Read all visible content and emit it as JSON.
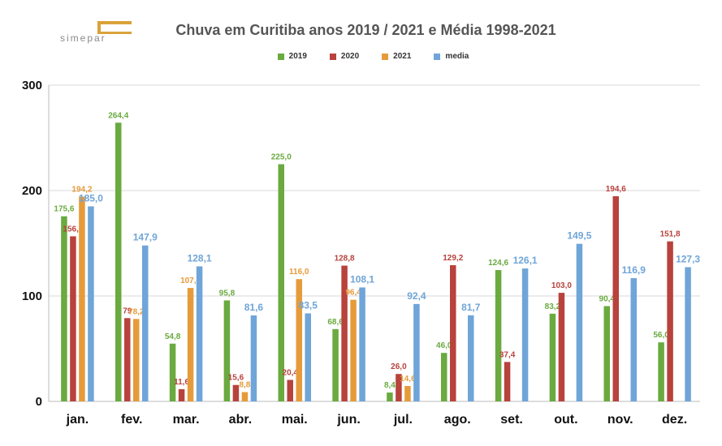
{
  "header": {
    "title": "Chuva em Curitiba anos 2019 / 2021 e Média 1998-2021",
    "logo_text": "simepar"
  },
  "colors": {
    "2019": "#6aaa3f",
    "2020": "#b8423c",
    "2021": "#e69b3a",
    "media": "#6fa5d8"
  },
  "chart_data": {
    "type": "bar",
    "title": "Chuva em Curitiba anos 2019 / 2021 e Média 1998-2021",
    "xlabel": "",
    "ylabel": "",
    "ylim": [
      0,
      300
    ],
    "yticks": [
      "0",
      "100",
      "200",
      "300"
    ],
    "grid": true,
    "legend_position": "top",
    "categories": [
      "jan.",
      "fev.",
      "mar.",
      "abr.",
      "mai.",
      "jun.",
      "jul.",
      "ago.",
      "set.",
      "out.",
      "nov.",
      "dez."
    ],
    "series": [
      {
        "name": "2019",
        "color": "#6aaa3f",
        "values": [
          175.6,
          264.4,
          54.8,
          95.8,
          225.0,
          68.6,
          8.4,
          46.0,
          124.6,
          83.2,
          90.4,
          56.0
        ],
        "labels": [
          "175,6",
          "264,4",
          "54,8",
          "95,8",
          "225,0",
          "68,6",
          "8,4",
          "46,0",
          "124,6",
          "83,2",
          "90,4",
          "56,0"
        ]
      },
      {
        "name": "2020",
        "color": "#b8423c",
        "values": [
          156.6,
          79.0,
          11.6,
          15.6,
          20.4,
          128.8,
          26.0,
          129.2,
          37.4,
          103.0,
          194.6,
          151.8
        ],
        "labels": [
          "156,6",
          "79",
          "11,6",
          "15,6",
          "20,4",
          "128,8",
          "26,0",
          "129,2",
          "37,4",
          "103,0",
          "194,6",
          "151,8"
        ]
      },
      {
        "name": "2021",
        "color": "#e69b3a",
        "values": [
          194.2,
          78.2,
          107.6,
          8.8,
          116.0,
          96.4,
          14.6,
          null,
          null,
          null,
          null,
          null
        ],
        "labels": [
          "194,2",
          "78,2",
          "107,6",
          "8,8",
          "116,0",
          "96,4",
          "14,6",
          null,
          null,
          null,
          null,
          null
        ]
      },
      {
        "name": "media",
        "color": "#6fa5d8",
        "values": [
          185.0,
          147.9,
          128.1,
          81.6,
          83.5,
          108.1,
          92.4,
          81.7,
          126.1,
          149.5,
          116.9,
          127.3
        ],
        "labels": [
          "185,0",
          "147,9",
          "128,1",
          "81,6",
          "83,5",
          "108,1",
          "92,4",
          "81,7",
          "126,1",
          "149,5",
          "116,9",
          "127,3"
        ]
      }
    ]
  }
}
